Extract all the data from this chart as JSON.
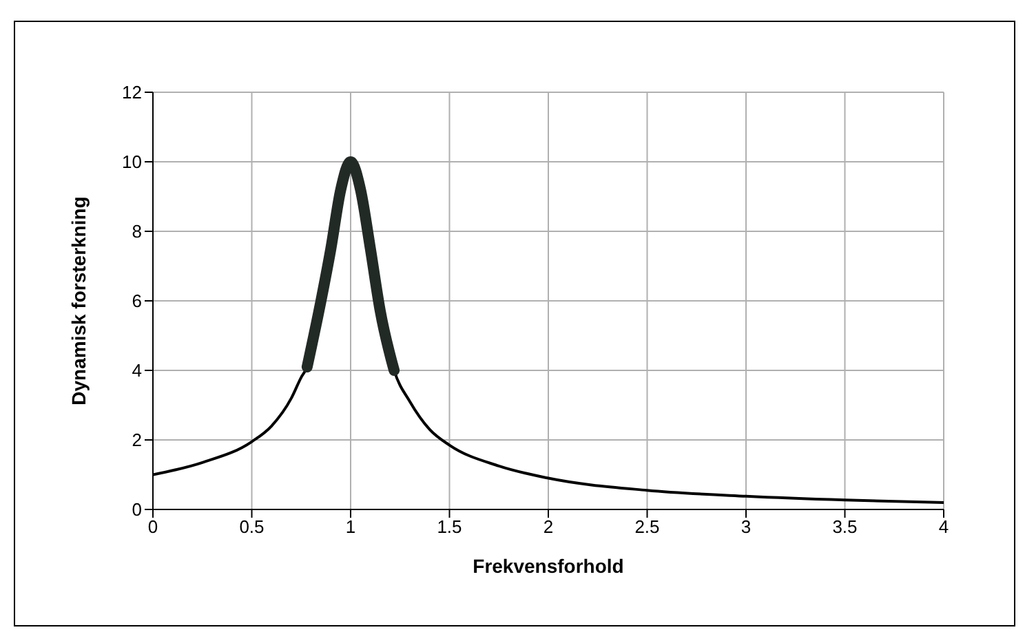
{
  "chart_data": {
    "type": "line",
    "xlabel": "Frekvensforhold",
    "ylabel": "Dynamisk forsterkning",
    "xlim": [
      0,
      4
    ],
    "xticks": [
      0,
      0.5,
      1,
      1.5,
      2,
      2.5,
      3,
      3.5,
      4
    ],
    "ylim": [
      0,
      12
    ],
    "yticks": [
      0,
      2,
      4,
      6,
      8,
      10,
      12
    ],
    "grid": true,
    "marker": "none",
    "line_style": "solid",
    "series": [
      {
        "color": "#000000",
        "x": [
          0,
          0.25,
          0.5,
          0.6,
          0.7,
          0.75,
          0.78,
          0.85,
          0.9,
          0.95,
          1,
          1.05,
          1.1,
          1.15,
          1.22,
          1.3,
          1.4,
          1.5,
          1.75,
          2,
          2.5,
          3,
          3.5,
          4
        ],
        "values": [
          1.0,
          1.35,
          1.95,
          2.4,
          3.2,
          3.8,
          4.1,
          6.0,
          7.5,
          9.2,
          10.0,
          9.2,
          7.5,
          5.7,
          4.0,
          3.1,
          2.3,
          1.85,
          1.25,
          0.9,
          0.55,
          0.38,
          0.27,
          0.2
        ]
      },
      {
        "color": "#222a26",
        "x": [
          0.78,
          0.85,
          0.9,
          0.95,
          1,
          1.05,
          1.1,
          1.15,
          1.22
        ],
        "values": [
          4.1,
          6.0,
          7.5,
          9.2,
          10.0,
          9.2,
          7.5,
          5.7,
          4.0
        ]
      }
    ]
  }
}
